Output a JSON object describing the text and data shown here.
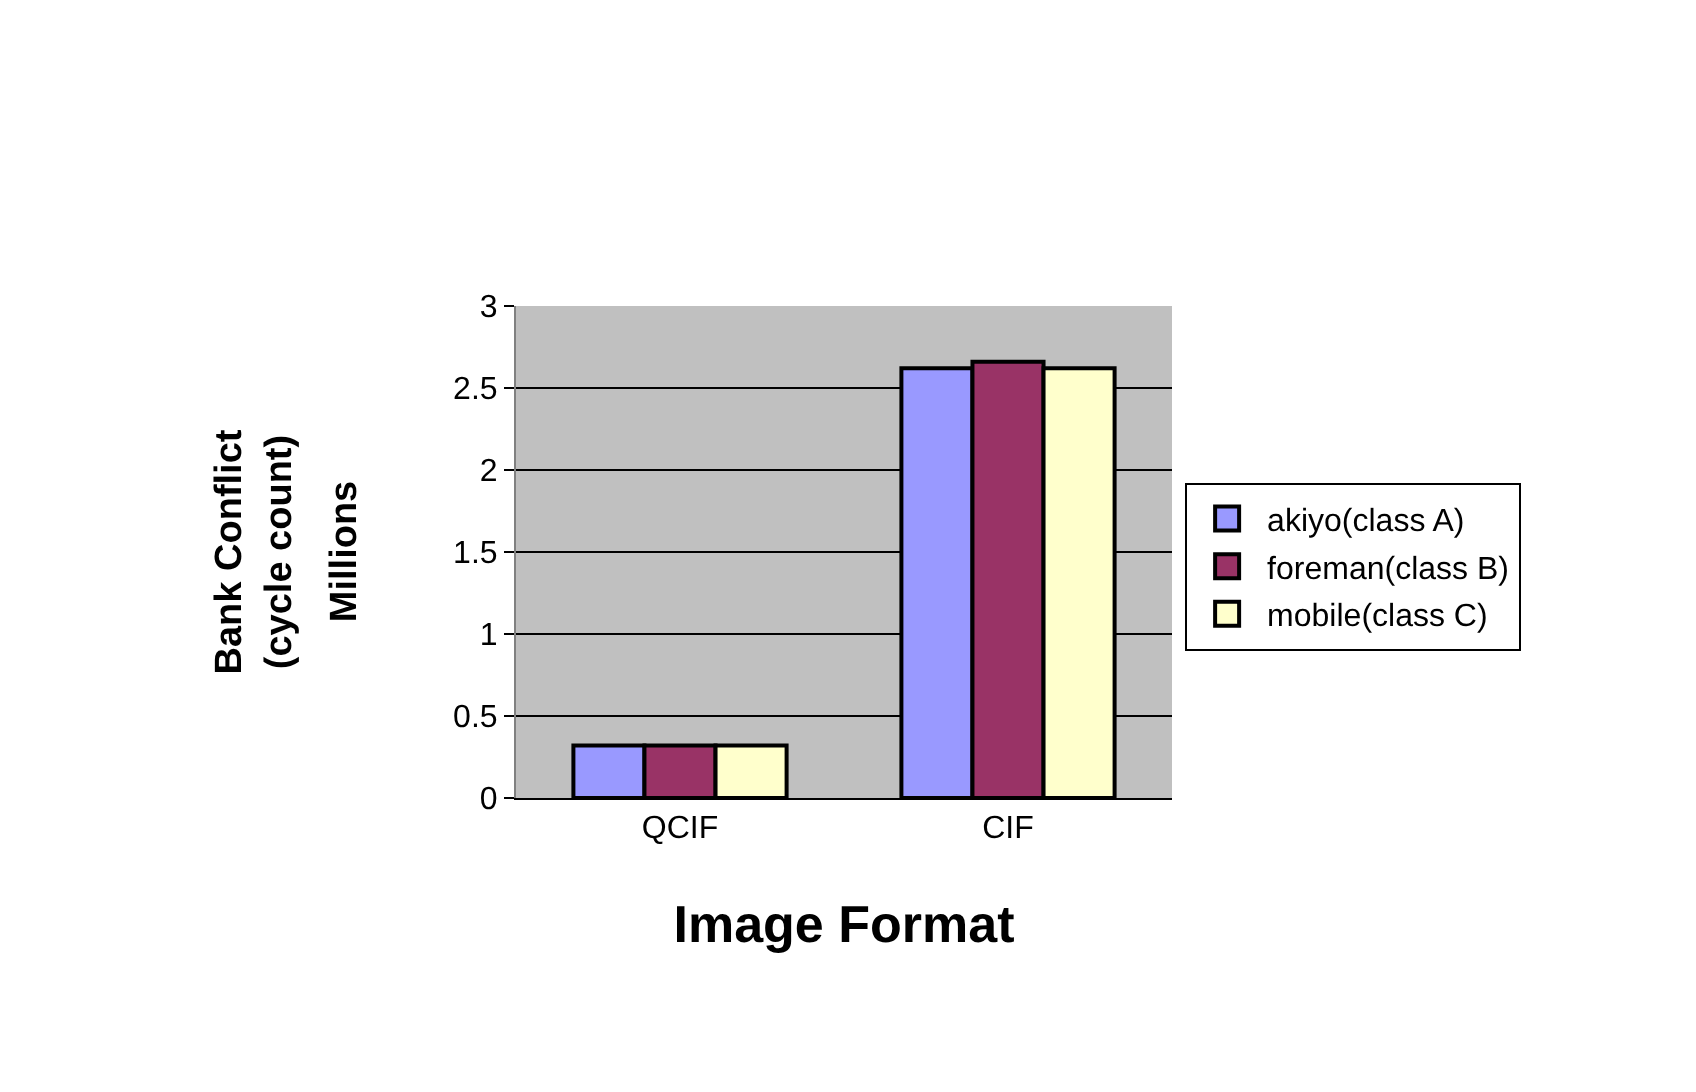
{
  "chart_data": {
    "type": "bar",
    "xlabel": "Image Format",
    "ylabel": "Bank Conflict (cycle count)",
    "annotations": [
      "Millions"
    ],
    "categories": [
      "QCIF",
      "CIF"
    ],
    "series": [
      {
        "name": "akiyo(class A)",
        "color": "#9999ff",
        "values": [
          0.32,
          2.62
        ]
      },
      {
        "name": "foreman(class B)",
        "color": "#993366",
        "values": [
          0.32,
          2.66
        ]
      },
      {
        "name": "mobile(class C)",
        "color": "#ffffcc",
        "values": [
          0.32,
          2.62
        ]
      }
    ],
    "ylim": [
      0,
      3
    ],
    "yticks": [
      0,
      0.5,
      1,
      1.5,
      2,
      2.5,
      3
    ],
    "grid": "y",
    "legend": "right"
  }
}
